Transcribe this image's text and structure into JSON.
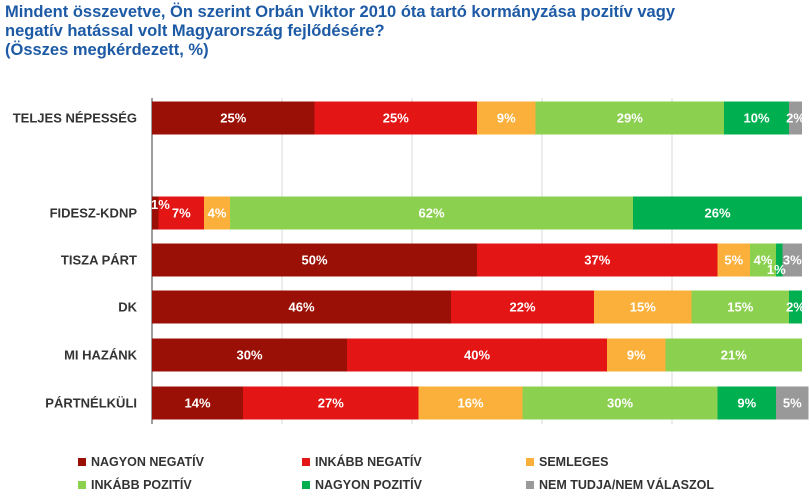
{
  "chart_data": {
    "type": "bar",
    "orientation": "horizontal",
    "stacked": true,
    "title_lines": [
      "Mindent összevetve, Ön szerint Orbán Viktor 2010 óta tartó kormányzása pozitív vagy",
      "negatív hatással volt Magyarország fejlődésére?",
      "(Összes megkérdezett, %)"
    ],
    "categories": [
      "TELJES NÉPESSÉG",
      "FIDESZ-KDNP",
      "TISZA PÁRT",
      "DK",
      "MI HAZÁNK",
      "PÁRTNÉLKÜLI"
    ],
    "xlim": [
      0,
      100
    ],
    "grid": true,
    "legend_position": "bottom",
    "series": [
      {
        "name": "NAGYON NEGATÍV",
        "color": "#9b1006",
        "label_color": "#ffffff",
        "values": [
          25,
          1,
          50,
          46,
          30,
          14
        ],
        "labels": [
          "25%",
          "1%",
          "50%",
          "46%",
          "30%",
          "14%"
        ]
      },
      {
        "name": "INKÁBB NEGATÍV",
        "color": "#e31515",
        "label_color": "#ffffff",
        "values": [
          25,
          7,
          37,
          22,
          40,
          27
        ],
        "labels": [
          "25%",
          "7%",
          "37%",
          "22%",
          "40%",
          "27%"
        ]
      },
      {
        "name": "SEMLEGES",
        "color": "#fbb03b",
        "label_color": "#ffffff",
        "values": [
          9,
          4,
          5,
          15,
          9,
          16
        ],
        "labels": [
          "9%",
          "4%",
          "5%",
          "15%",
          "9%",
          "16%"
        ]
      },
      {
        "name": "INKÁBB POZITÍV",
        "color": "#8cd050",
        "label_color": "#ffffff",
        "values": [
          29,
          62,
          4,
          15,
          21,
          30
        ],
        "labels": [
          "29%",
          "62%",
          "4%",
          "15%",
          "21%",
          "30%"
        ]
      },
      {
        "name": "NAGYON POZITÍV",
        "color": "#00b050",
        "label_color": "#ffffff",
        "values": [
          10,
          26,
          1,
          2,
          0,
          9
        ],
        "labels": [
          "10%",
          "26%",
          "1%",
          "2%",
          "",
          "9%"
        ]
      },
      {
        "name": "NEM TUDJA/NEM VÁLASZOL",
        "color": "#999999",
        "label_color": "#ffffff",
        "values": [
          2,
          0,
          3,
          0,
          0,
          5
        ],
        "labels": [
          "2%",
          "",
          "3%",
          "",
          "",
          "5%"
        ]
      }
    ]
  }
}
